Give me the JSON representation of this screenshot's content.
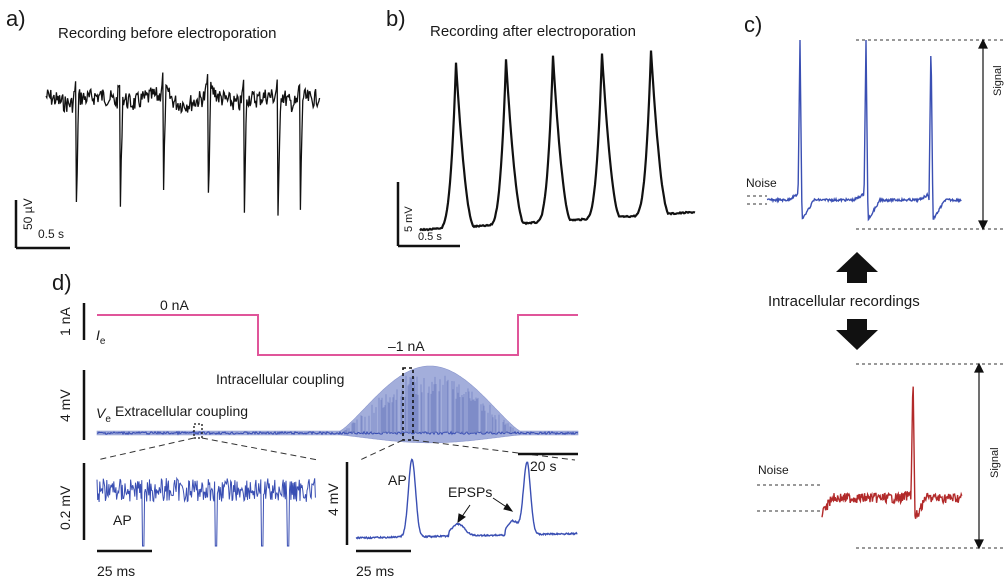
{
  "panels": {
    "a": {
      "label": "a)",
      "title": "Recording before electroporation",
      "scalebar_y": "50 µV",
      "scalebar_x": "0.5 s"
    },
    "b": {
      "label": "b)",
      "title": "Recording after electroporation",
      "scalebar_y": "5 mV",
      "scalebar_x": "0.5 s"
    },
    "c": {
      "label": "c)",
      "top_noise": "Noise",
      "top_signal": "Signal",
      "center_text": "Intracellular recordings",
      "bottom_noise": "Noise",
      "bottom_signal": "Signal"
    },
    "d": {
      "label": "d)",
      "current_scale": "1 nA",
      "current_symbol": "I",
      "current_sub": "e",
      "current_0": "0 nA",
      "current_neg": "–1 nA",
      "voltage_scale": "4 mV",
      "voltage_symbol": "V",
      "voltage_sub": "e",
      "intracellular": "Intracellular coupling",
      "extracellular": "Extracellular coupling",
      "time_scale": "20 s",
      "inset_left_scale": "0.2 mV",
      "inset_left_ap": "AP",
      "inset_left_time": "25 ms",
      "inset_right_scale": "4 mV",
      "inset_right_ap": "AP",
      "inset_right_epsp": "EPSPs",
      "inset_right_time": "25 ms"
    }
  },
  "colors": {
    "black_trace": "#111111",
    "blue_trace": "#3a4fb3",
    "red_trace": "#b22a2a",
    "pink_step": "#e0559a",
    "fill_blue": "#9aa6d8"
  }
}
